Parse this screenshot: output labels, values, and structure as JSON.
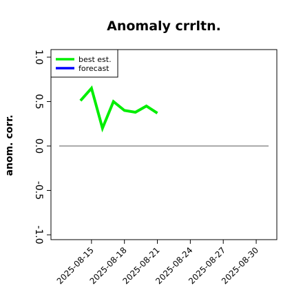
{
  "chart_data": {
    "type": "line",
    "title": "Anomaly crrltn.",
    "ylabel": "anom. corr.",
    "xlabel": "",
    "ylim": [
      -1.0,
      1.0
    ],
    "yticks": [
      "-1.0",
      "-0.5",
      "0.0",
      "0.5",
      "1.0"
    ],
    "xlim": [
      "2025-08-12",
      "2025-08-31"
    ],
    "xticks": [
      "2025-08-15",
      "2025-08-18",
      "2025-08-21",
      "2025-08-24",
      "2025-08-27",
      "2025-08-30"
    ],
    "highlighted_xtick": "2025-08-21",
    "highlight_color": "#228b22",
    "reference_line": 0.0,
    "series": [
      {
        "name": "best est.",
        "color": "#00ee00",
        "x": [
          "2025-08-14",
          "2025-08-15",
          "2025-08-16",
          "2025-08-17",
          "2025-08-18",
          "2025-08-19",
          "2025-08-20",
          "2025-08-21"
        ],
        "values": [
          0.51,
          0.65,
          0.2,
          0.5,
          0.4,
          0.38,
          0.45,
          0.37
        ]
      },
      {
        "name": "forecast",
        "color": "#0000ff",
        "x": [],
        "values": []
      }
    ],
    "legend_position": "top-left",
    "grid": false
  }
}
